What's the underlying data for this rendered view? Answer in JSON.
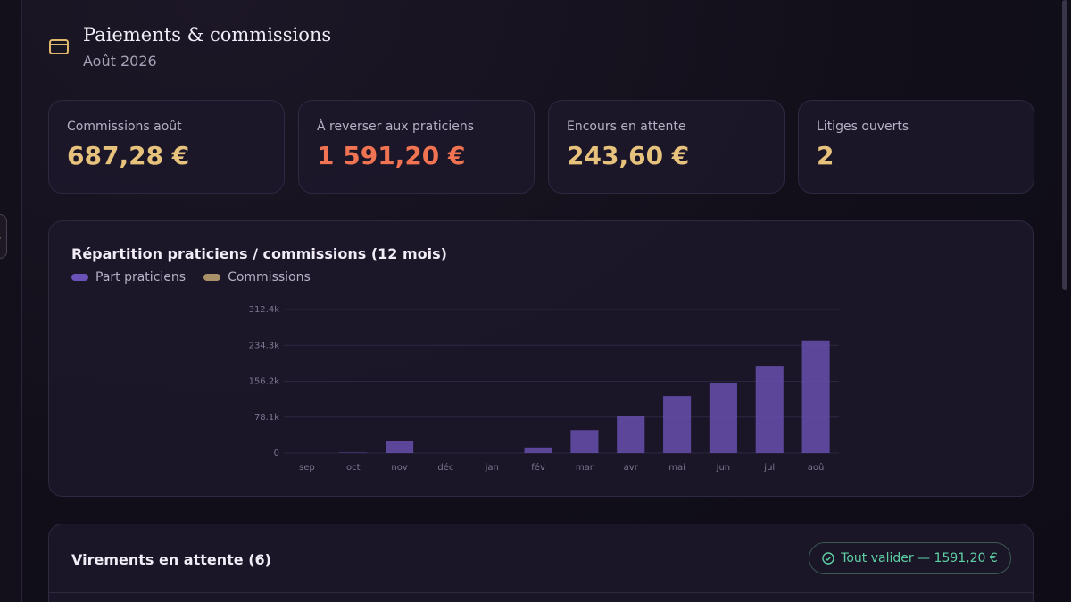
{
  "sidebar": {
    "toggle_label": "us"
  },
  "header": {
    "title": "Paiements & commissions",
    "subtitle": "Août 2026"
  },
  "kpis": [
    {
      "label": "Commissions août",
      "value": "687,28 €"
    },
    {
      "label": "À reverser aux praticiens",
      "value": "1 591,20 €"
    },
    {
      "label": "Encours en attente",
      "value": "243,60 €"
    },
    {
      "label": "Litiges ouverts",
      "value": "2"
    }
  ],
  "chart_data": {
    "type": "bar",
    "stacked": true,
    "title": "Répartition praticiens / commissions (12 mois)",
    "categories": [
      "sep",
      "oct",
      "nov",
      "déc",
      "jan",
      "fév",
      "mar",
      "avr",
      "mai",
      "jun",
      "jul",
      "aoû"
    ],
    "series": [
      {
        "name": "Part praticiens",
        "color": "#6b52b8",
        "values": [
          0,
          1000,
          27000,
          0,
          0,
          12000,
          50000,
          80000,
          124000,
          153000,
          190000,
          245000
        ]
      },
      {
        "name": "Commissions",
        "color": "#a89068",
        "values": [
          0,
          0,
          0,
          0,
          0,
          0,
          0,
          0,
          0,
          0,
          0,
          0
        ]
      }
    ],
    "ylim": [
      0,
      312400
    ],
    "yticks": [
      0,
      {
        "value": 78100,
        "label": "78.1k"
      },
      {
        "value": 156200,
        "label": "156.2k"
      },
      {
        "value": 234300,
        "label": "234.3k"
      },
      {
        "value": 312400,
        "label": "312.4k"
      }
    ],
    "grid": true
  },
  "transfers": {
    "title": "Virements en attente (6)",
    "action": "Tout valider — 1591,20 €"
  }
}
